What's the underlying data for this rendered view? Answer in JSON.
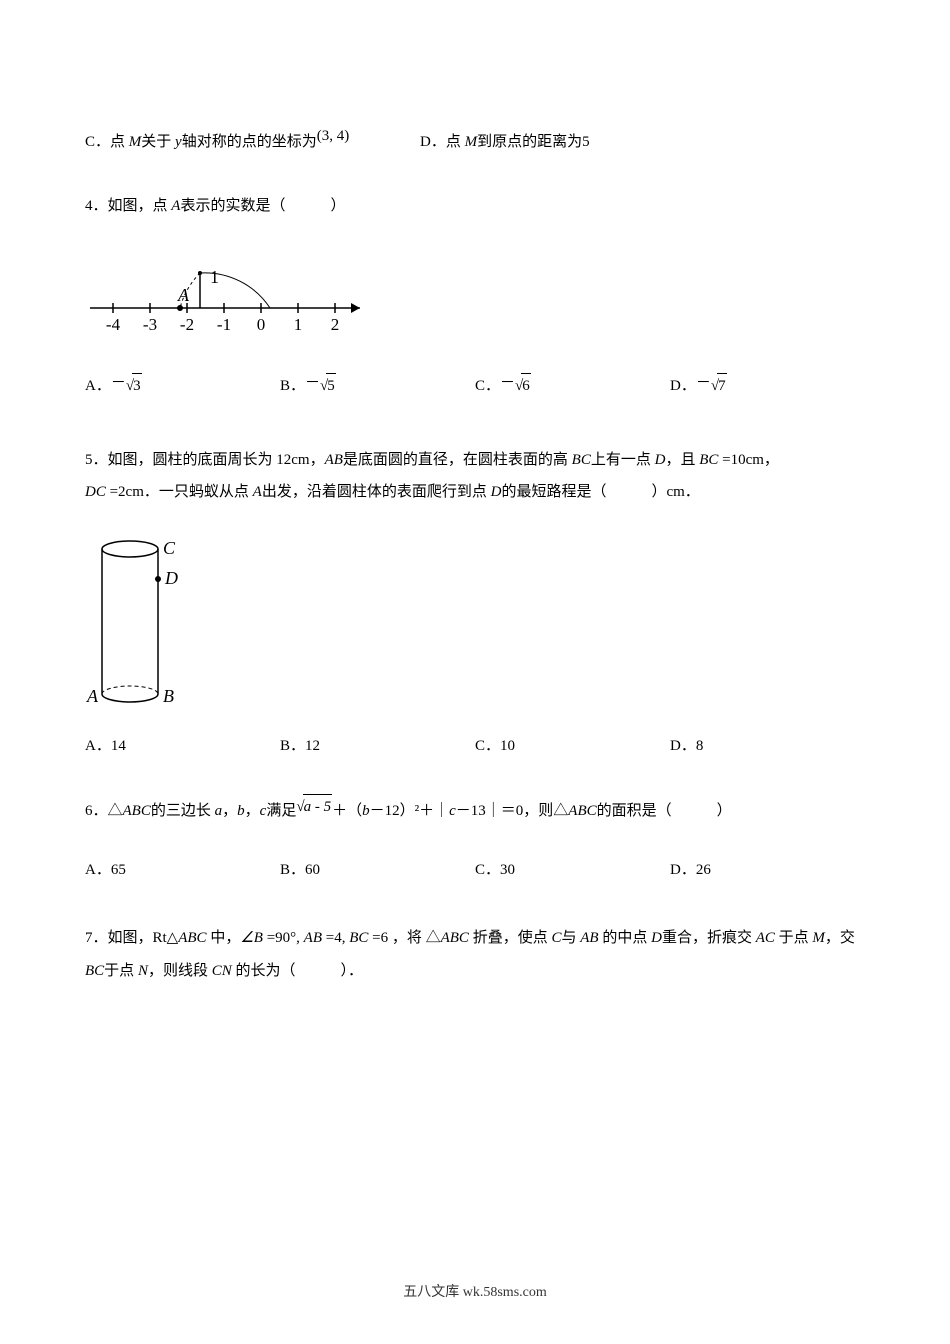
{
  "q3": {
    "optC_prefix": "C．点 ",
    "optC_var1": "M",
    "optC_mid1": "关于 ",
    "optC_var2": "y",
    "optC_mid2": "轴对称的点的坐标为",
    "optC_coord": "(3, 4)",
    "optD_prefix": "D．点 ",
    "optD_var": "M",
    "optD_mid": "到原点的距离为",
    "optD_val": "5"
  },
  "q4": {
    "text_prefix": "4．如图，点 ",
    "text_var": "A",
    "text_suffix": "表示的实数是（　　　）",
    "optA": "A．",
    "optA_val": "3",
    "optB": "B．",
    "optB_val": "5",
    "optC": "C．",
    "optC_val": "6",
    "optD": "D．",
    "optD_val": "7",
    "diagram": {
      "ticks": [
        "-4",
        "-3",
        "-2",
        "-1",
        "0",
        "1",
        "2"
      ],
      "pointA": "A",
      "label1": "1",
      "xA": -2.6,
      "arcRadius": 2.24,
      "segTopX": -2,
      "segTopY": 1,
      "axis_color": "#000000"
    }
  },
  "q5": {
    "line1_p1": "5．如图，圆柱的底面周长为 12cm，",
    "line1_ab": "AB",
    "line1_p2": "是底面圆的直径，在圆柱表面的高 ",
    "line1_bc": "BC",
    "line1_p3": "上有一点 ",
    "line1_d": "D",
    "line1_p4": "，且",
    "line1_bc2": " BC ",
    "line1_eq1": "=10cm，",
    "line2_dc": "DC",
    "line2_eq": " =2cm",
    "line2_p1": "．一只蚂蚁从点 ",
    "line2_a": "A",
    "line2_p2": "出发，沿着圆柱体的表面爬行到点 ",
    "line2_d": "D",
    "line2_p3": "的最短路程是（　　　）cm．",
    "optA": "A．14",
    "optB": "B．12",
    "optC": "C．10",
    "optD": "D．8",
    "diagram": {
      "C": "C",
      "D": "D",
      "A": "A",
      "B": "B"
    }
  },
  "q6": {
    "p1": "6．△",
    "abc": "ABC",
    "p2": "的三边长 ",
    "a": "a",
    "comma1": "，",
    "b": "b",
    "comma2": "，",
    "c": "c",
    "p3": "满足",
    "sqrt_inner": "a - 5",
    "p4": "＋（",
    "b2": "b",
    "p5": "－12）²＋｜",
    "c2": "c",
    "p6": "－13｜＝0，则△",
    "abc2": "ABC",
    "p7": "的面积是（　　　）",
    "optA": "A．65",
    "optB": "B．60",
    "optC": "C．30",
    "optD": "D．26"
  },
  "q7": {
    "p1": "7．如图，Rt△",
    "abc": "ABC",
    "p2": " 中，",
    "angle": "∠B ",
    "eq1": "=90°, ",
    "ab": "AB ",
    "eq2": "=4, ",
    "bc": "BC ",
    "eq3": "=6 ，将 △",
    "abc2": "ABC",
    "p3": " 折叠，使点 ",
    "c": "C",
    "p4": "与 ",
    "ab2": "AB",
    "p5": " 的中点 ",
    "d": "D",
    "p6": "重合，折痕交 ",
    "ac": "AC",
    "p7": "于点 ",
    "m": "M",
    "p8": "，交 ",
    "bc2": "BC",
    "p9": "于点 ",
    "n": "N",
    "p10": "，则线段 ",
    "cn": "CN",
    "p11": " 的长为（　　　）．"
  },
  "footer": "五八文库 wk.58sms.com"
}
